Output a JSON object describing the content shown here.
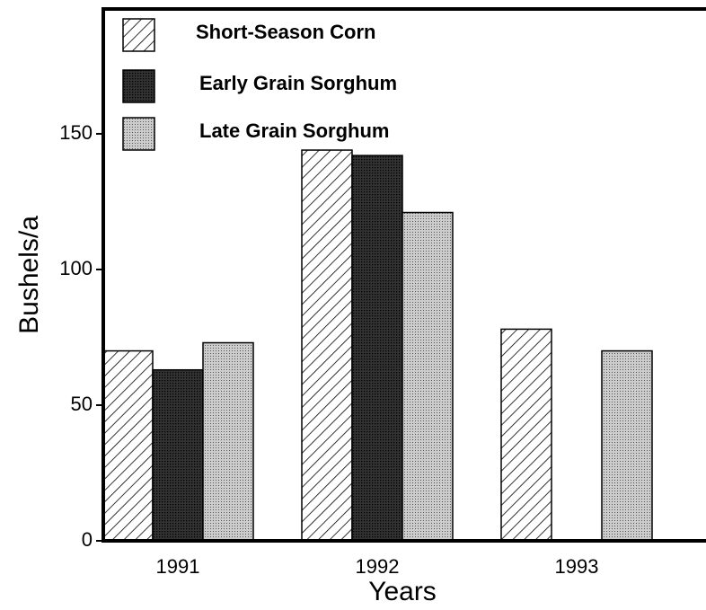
{
  "chart_data": {
    "type": "bar",
    "xlabel": "Years",
    "ylabel": "Bushels/a",
    "categories": [
      "1991",
      "1992",
      "1993"
    ],
    "series": [
      {
        "name": "Short-Season Corn",
        "color": "#ffffff",
        "values": [
          70,
          144,
          78
        ]
      },
      {
        "name": "Early Grain Sorghum",
        "color": "#333333",
        "values": [
          63,
          142,
          null
        ]
      },
      {
        "name": "Late Grain Sorghum",
        "color": "#cccccc",
        "values": [
          73,
          121,
          70
        ]
      }
    ],
    "ylim": [
      0,
      196
    ],
    "yticks": [
      0,
      50,
      100,
      150
    ],
    "grid": false,
    "legend": "upper left"
  }
}
